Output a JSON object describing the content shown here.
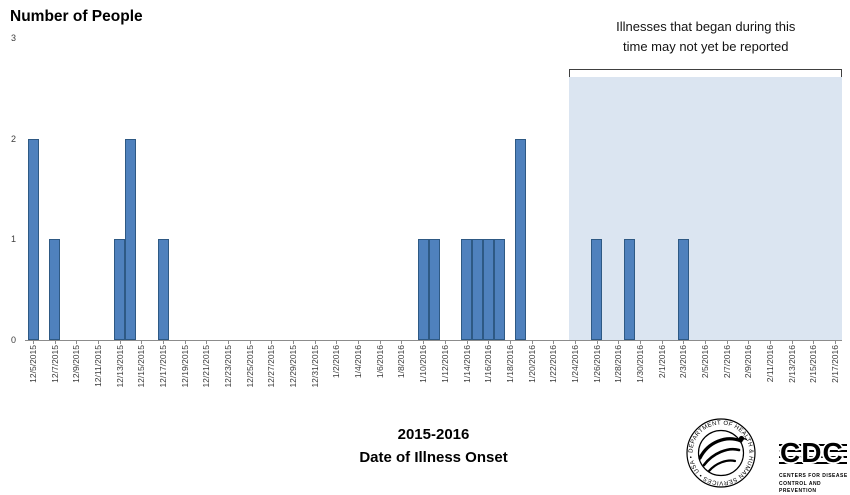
{
  "chart_data": {
    "type": "bar",
    "title": "Number of People",
    "ylabel": "Number of People",
    "xlabel": "Date of Illness Onset",
    "x_sublabel": "2015-2016",
    "ylim": [
      0,
      3
    ],
    "yticks": [
      0,
      1,
      2,
      3
    ],
    "grid": false,
    "legend": false,
    "colors": {
      "bar_fill": "#4f81bd",
      "bar_border": "#2e5984",
      "shade": "#dbe5f1"
    },
    "tick_labels": [
      "12/5/2015",
      "12/7/2015",
      "12/9/2015",
      "12/11/2015",
      "12/13/2015",
      "12/15/2015",
      "12/17/2015",
      "12/19/2015",
      "12/21/2015",
      "12/23/2015",
      "12/25/2015",
      "12/27/2015",
      "12/29/2015",
      "12/31/2015",
      "1/2/2016",
      "1/4/2016",
      "1/6/2016",
      "1/8/2016",
      "1/10/2016",
      "1/12/2016",
      "1/14/2016",
      "1/16/2016",
      "1/18/2016",
      "1/20/2016",
      "1/22/2016",
      "1/24/2016",
      "1/26/2016",
      "1/28/2016",
      "1/30/2016",
      "2/1/2016",
      "2/3/2016",
      "2/5/2016",
      "2/7/2016",
      "2/9/2016",
      "2/11/2016",
      "2/13/2016",
      "2/15/2016",
      "2/17/2016"
    ],
    "bars": [
      {
        "date": "12/5/2015",
        "day_index": 0,
        "value": 2
      },
      {
        "date": "12/7/2015",
        "day_index": 2,
        "value": 1
      },
      {
        "date": "12/13/2015",
        "day_index": 8,
        "value": 1
      },
      {
        "date": "12/14/2015",
        "day_index": 9,
        "value": 2
      },
      {
        "date": "12/17/2015",
        "day_index": 12,
        "value": 1
      },
      {
        "date": "1/10/2016",
        "day_index": 36,
        "value": 1
      },
      {
        "date": "1/11/2016",
        "day_index": 37,
        "value": 1
      },
      {
        "date": "1/14/2016",
        "day_index": 40,
        "value": 1
      },
      {
        "date": "1/15/2016",
        "day_index": 41,
        "value": 1
      },
      {
        "date": "1/16/2016",
        "day_index": 42,
        "value": 1
      },
      {
        "date": "1/17/2016",
        "day_index": 43,
        "value": 1
      },
      {
        "date": "1/19/2016",
        "day_index": 45,
        "value": 2
      },
      {
        "date": "1/26/2016",
        "day_index": 52,
        "value": 1
      },
      {
        "date": "1/29/2016",
        "day_index": 55,
        "value": 1
      },
      {
        "date": "2/3/2016",
        "day_index": 60,
        "value": 1
      }
    ],
    "shaded_region": {
      "start_day_index": 49.5,
      "start_label": "1/24/2016",
      "end_label": "2/17/2016"
    },
    "annotation": {
      "lines": [
        "Illnesses that began during this",
        "time may not yet be reported"
      ]
    }
  },
  "footer": {
    "hhs_seal_text": "DEPARTMENT OF HEALTH & HUMAN SERVICES • USA •",
    "cdc_logo": "CDC",
    "cdc_caption_line1": "CENTERS FOR DISEASE",
    "cdc_caption_line2": "CONTROL AND PREVENTION"
  }
}
